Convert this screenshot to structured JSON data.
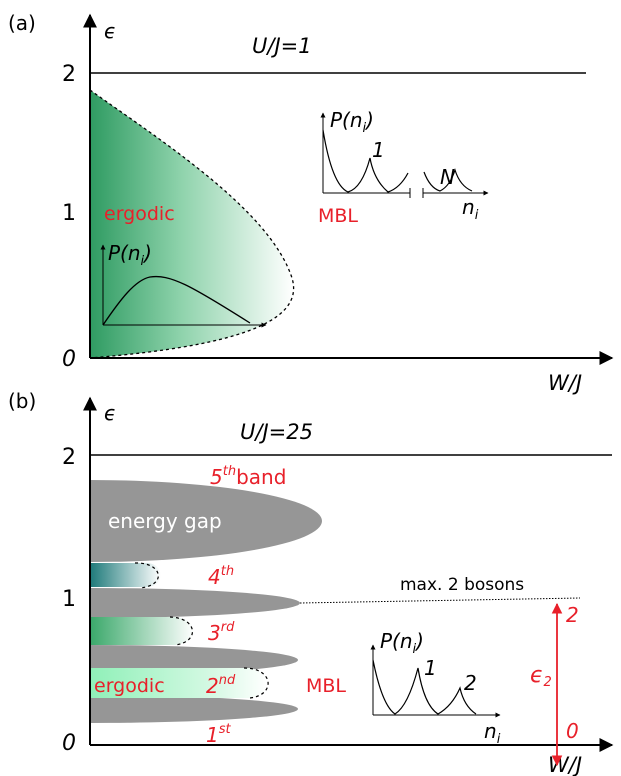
{
  "colors": {
    "ergodic_green": "#2f9b62",
    "light_green": "#a9f0c8",
    "teal": "#1e7a7a",
    "gray_band": "#969696",
    "red_label": "#e8202a",
    "black": "#000000"
  },
  "panel_a": {
    "label": "(a)",
    "y_axis_label": "ϵ",
    "x_axis_label": "W/J",
    "title": "U/J=1",
    "y_ticks": [
      "0",
      "1",
      "2"
    ],
    "ergodic_label": "ergodic",
    "mbl_label": "MBL",
    "inset_ergodic": {
      "ylabel_main": "P(n",
      "ylabel_sub": "i",
      "ylabel_close": ")"
    },
    "inset_mbl": {
      "ylabel_main": "P(n",
      "ylabel_sub": "i",
      "ylabel_close": ")",
      "peak_label_1": "1",
      "peak_label_n": "N",
      "xlabel_main": "n",
      "xlabel_sub": "i"
    }
  },
  "panel_b": {
    "label": "(b)",
    "y_axis_label": "ϵ",
    "x_axis_label": "W/J",
    "title": "U/J=25",
    "y_ticks": [
      "0",
      "1",
      "2"
    ],
    "gap_label": "energy gap",
    "band_labels": [
      {
        "num": "5",
        "sup": "th",
        "suffix": "band"
      },
      {
        "num": "4",
        "sup": "th",
        "suffix": ""
      },
      {
        "num": "3",
        "sup": "rd",
        "suffix": ""
      },
      {
        "num": "2",
        "sup": "nd",
        "suffix": ""
      },
      {
        "num": "1",
        "sup": "st",
        "suffix": ""
      }
    ],
    "ergodic_label": "ergodic",
    "mbl_label": "MBL",
    "max_bosons_label": "max. 2 bosons",
    "epsilon2": {
      "symbol": "ϵ",
      "sub": "2",
      "top_value": "2",
      "bottom_value": "0"
    },
    "inset_mbl": {
      "ylabel_main": "P(n",
      "ylabel_sub": "i",
      "ylabel_close": ")",
      "peak_label_1": "1",
      "peak_label_2": "2",
      "xlabel_main": "n",
      "xlabel_sub": "i"
    }
  }
}
